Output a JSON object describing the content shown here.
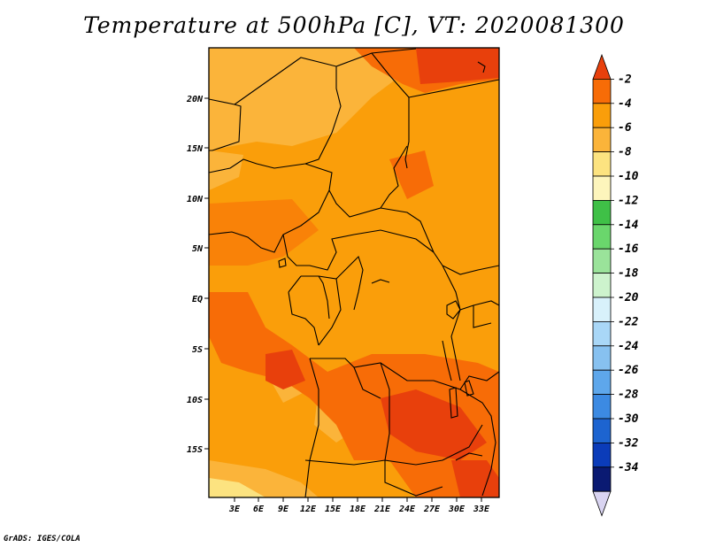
{
  "title": "Temperature at 500hPa [C], VT: 2020081300",
  "credit": "GrADS: IGES/COLA",
  "map": {
    "lon_labels": [
      "3E",
      "6E",
      "9E",
      "12E",
      "15E",
      "18E",
      "21E",
      "24E",
      "27E",
      "30E",
      "33E"
    ],
    "lat_labels": [
      "20N",
      "15N",
      "10N",
      "5N",
      "EQ",
      "5S",
      "10S",
      "15S"
    ],
    "colorbar": {
      "labels": [
        "-2",
        "-4",
        "-6",
        "-8",
        "-10",
        "-12",
        "-14",
        "-16",
        "-18",
        "-20",
        "-22",
        "-24",
        "-26",
        "-28",
        "-30",
        "-32",
        "-34"
      ],
      "colors": [
        "#e8400c",
        "#f76c07",
        "#fa9e0a",
        "#fbb43a",
        "#fce380",
        "#fdf5bc",
        "#3fc047",
        "#6ad66c",
        "#9ae39a",
        "#cdf3cd",
        "#d8f1fb",
        "#a9d7f7",
        "#87c1f0",
        "#5ea7eb",
        "#3c8ae2",
        "#1d64d0",
        "#0b3cb9",
        "#0a1a72",
        "#d9d4f1"
      ]
    }
  }
}
